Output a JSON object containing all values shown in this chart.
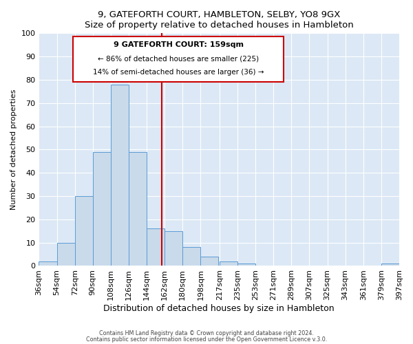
{
  "title": "9, GATEFORTH COURT, HAMBLETON, SELBY, YO8 9GX",
  "subtitle": "Size of property relative to detached houses in Hambleton",
  "xlabel": "Distribution of detached houses by size in Hambleton",
  "ylabel": "Number of detached properties",
  "bar_left_edges": [
    36,
    54,
    72,
    90,
    108,
    126,
    144,
    162,
    180,
    198,
    217,
    235,
    253,
    271,
    289,
    307,
    325,
    343,
    361,
    379
  ],
  "bar_heights": [
    2,
    10,
    30,
    49,
    78,
    49,
    16,
    15,
    8,
    4,
    2,
    1,
    0,
    0,
    0,
    0,
    0,
    0,
    0,
    1
  ],
  "bin_width": 18,
  "bar_color": "#c9daea",
  "bar_edge_color": "#5b9bd5",
  "tick_labels": [
    "36sqm",
    "54sqm",
    "72sqm",
    "90sqm",
    "108sqm",
    "126sqm",
    "144sqm",
    "162sqm",
    "180sqm",
    "198sqm",
    "217sqm",
    "235sqm",
    "253sqm",
    "271sqm",
    "289sqm",
    "307sqm",
    "325sqm",
    "343sqm",
    "361sqm",
    "379sqm",
    "397sqm"
  ],
  "tick_positions": [
    36,
    54,
    72,
    90,
    108,
    126,
    144,
    162,
    180,
    198,
    217,
    235,
    253,
    271,
    289,
    307,
    325,
    343,
    361,
    379,
    397
  ],
  "vline_x": 159,
  "vline_color": "#cc0000",
  "ylim": [
    0,
    100
  ],
  "xlim": [
    36,
    397
  ],
  "annotation_title": "9 GATEFORTH COURT: 159sqm",
  "annotation_line1": "← 86% of detached houses are smaller (225)",
  "annotation_line2": "14% of semi-detached houses are larger (36) →",
  "annotation_box_color": "#cc0000",
  "background_color": "#dce8f5",
  "footer1": "Contains HM Land Registry data © Crown copyright and database right 2024.",
  "footer2": "Contains public sector information licensed under the Open Government Licence v.3.0."
}
